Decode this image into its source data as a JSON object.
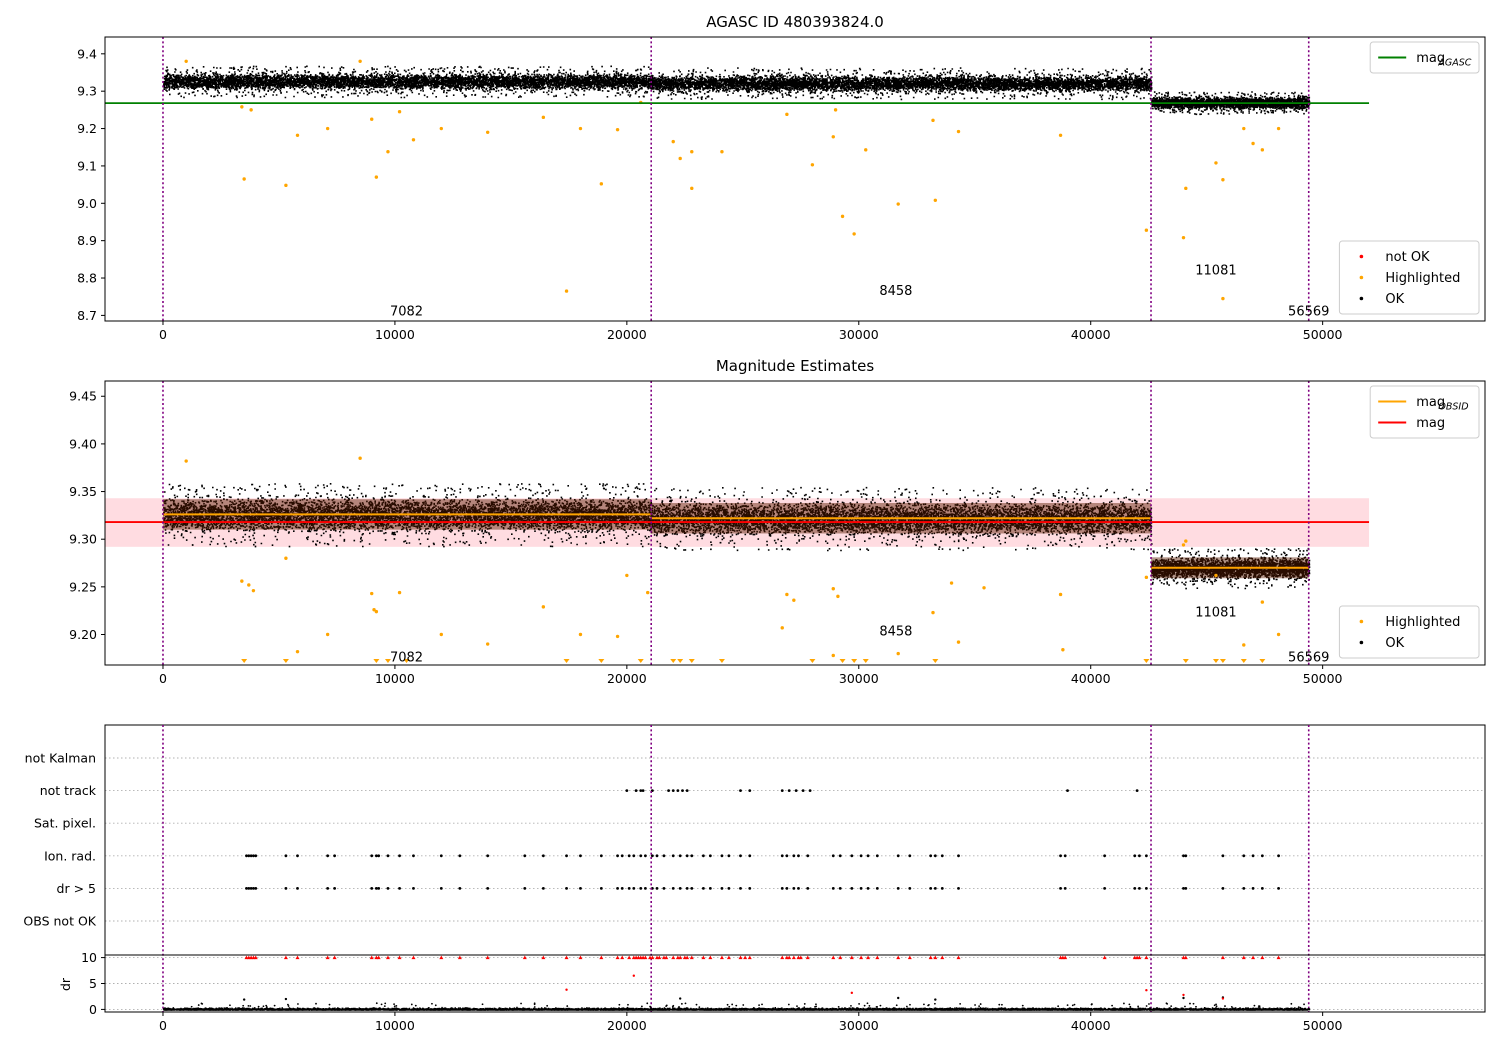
{
  "chart_data": [
    {
      "id": "top",
      "type": "scatter",
      "title": "AGASC ID 480393824.0",
      "xlim": [
        -2500,
        57000
      ],
      "ylim": [
        8.685,
        9.445
      ],
      "xticks": [
        0,
        10000,
        20000,
        30000,
        40000,
        50000
      ],
      "yticks": [
        8.7,
        8.8,
        8.9,
        9.0,
        9.1,
        9.2,
        9.3,
        9.4
      ],
      "ytick_format": 1,
      "legend_upper": {
        "position": "top-right",
        "entries": [
          {
            "label": "mag",
            "sub": "AGASC",
            "color": "#008000",
            "kind": "line"
          }
        ]
      },
      "legend_lower": {
        "position": "bottom-right",
        "entries": [
          {
            "label": "not OK",
            "color": "#ff0000",
            "kind": "dot"
          },
          {
            "label": "Highlighted",
            "color": "#ffa500",
            "kind": "dot"
          },
          {
            "label": "OK",
            "color": "#000000",
            "kind": "dot"
          }
        ]
      },
      "hlines": [
        {
          "y": 9.268,
          "x": [
            -2500,
            52000
          ],
          "color": "#008000"
        }
      ],
      "obsid_boundaries": [
        0,
        21050,
        42600,
        49400
      ],
      "obsid_labels": [
        {
          "text": "7082",
          "x": 10500,
          "y": 8.71
        },
        {
          "text": "8458",
          "x": 31600,
          "y": 8.765
        },
        {
          "text": "11081",
          "x": 45400,
          "y": 8.82
        },
        {
          "text": "56569",
          "x": 49400,
          "y": 8.71
        }
      ],
      "segments": [
        {
          "x": [
            0,
            21050
          ],
          "center": 9.327,
          "spread": 0.028,
          "lo": 9.28,
          "hi": 9.38,
          "n": 7000
        },
        {
          "x": [
            21050,
            42600
          ],
          "center": 9.322,
          "spread": 0.028,
          "lo": 9.28,
          "hi": 9.38,
          "n": 7000
        },
        {
          "x": [
            42600,
            49400
          ],
          "center": 9.27,
          "spread": 0.02,
          "lo": 9.24,
          "hi": 9.3,
          "n": 3000
        }
      ],
      "highlighted": [
        [
          3500,
          9.065
        ],
        [
          5300,
          9.048
        ],
        [
          5800,
          9.182
        ],
        [
          7100,
          9.2
        ],
        [
          9000,
          9.225
        ],
        [
          9200,
          9.07
        ],
        [
          9700,
          9.138
        ],
        [
          10200,
          9.245
        ],
        [
          10800,
          9.17
        ],
        [
          12000,
          9.2
        ],
        [
          14000,
          9.19
        ],
        [
          16400,
          9.23
        ],
        [
          17400,
          8.765
        ],
        [
          18000,
          9.2
        ],
        [
          18900,
          9.052
        ],
        [
          19600,
          9.197
        ],
        [
          20600,
          9.27
        ],
        [
          22000,
          9.165
        ],
        [
          22300,
          9.12
        ],
        [
          22800,
          9.04
        ],
        [
          22800,
          9.138
        ],
        [
          24100,
          9.138
        ],
        [
          26900,
          9.238
        ],
        [
          28000,
          9.103
        ],
        [
          28900,
          9.178
        ],
        [
          29300,
          8.965
        ],
        [
          29800,
          8.918
        ],
        [
          30300,
          9.143
        ],
        [
          31700,
          8.998
        ],
        [
          33300,
          9.008
        ],
        [
          33200,
          9.222
        ],
        [
          34300,
          9.192
        ],
        [
          38700,
          9.182
        ],
        [
          42400,
          8.928
        ],
        [
          44000,
          8.908
        ],
        [
          44100,
          9.04
        ],
        [
          45400,
          9.108
        ],
        [
          45700,
          9.063
        ],
        [
          45700,
          8.745
        ],
        [
          46600,
          9.2
        ],
        [
          47000,
          9.16
        ],
        [
          47400,
          9.143
        ],
        [
          48100,
          9.2
        ],
        [
          3400,
          9.258
        ],
        [
          3800,
          9.25
        ],
        [
          29000,
          9.25
        ],
        [
          1000,
          9.38
        ],
        [
          8500,
          9.38
        ]
      ],
      "seed": 11
    },
    {
      "id": "mid",
      "type": "scatter",
      "title": "Magnitude Estimates",
      "xlim": [
        -2500,
        57000
      ],
      "ylim": [
        9.168,
        9.466
      ],
      "xticks": [
        0,
        10000,
        20000,
        30000,
        40000,
        50000
      ],
      "yticks": [
        9.2,
        9.25,
        9.3,
        9.35,
        9.4,
        9.45
      ],
      "ytick_format": 2,
      "legend_upper": {
        "position": "top-right",
        "entries": [
          {
            "label": "mag",
            "sub": "OBSID",
            "color": "#ffa500",
            "kind": "line"
          },
          {
            "label": "mag",
            "sub": "",
            "color": "#ff0000",
            "kind": "line"
          }
        ]
      },
      "legend_lower": {
        "position": "bottom-right",
        "entries": [
          {
            "label": "Highlighted",
            "color": "#ffa500",
            "kind": "dot"
          },
          {
            "label": "OK",
            "color": "#000000",
            "kind": "dot"
          }
        ]
      },
      "band": {
        "y": [
          9.292,
          9.343
        ],
        "x": [
          -2500,
          52000
        ],
        "color": "#ffc0c8"
      },
      "hlines": [
        {
          "y": 9.318,
          "x": [
            -2500,
            52000
          ],
          "color": "#ff0000"
        }
      ],
      "obsid_means": [
        {
          "x": [
            0,
            21050
          ],
          "y": 9.326,
          "err": 0.016
        },
        {
          "x": [
            21050,
            42600
          ],
          "y": 9.322,
          "err": 0.016
        },
        {
          "x": [
            42600,
            49400
          ],
          "y": 9.27,
          "err": 0.011
        }
      ],
      "obsid_boundaries": [
        0,
        21050,
        42600,
        49400
      ],
      "obsid_labels": [
        {
          "text": "7082",
          "x": 10500,
          "y": 9.176
        },
        {
          "text": "8458",
          "x": 31600,
          "y": 9.203
        },
        {
          "text": "11081",
          "x": 45400,
          "y": 9.223
        },
        {
          "text": "56569",
          "x": 49400,
          "y": 9.176
        }
      ],
      "segments": [
        {
          "x": [
            0,
            21050
          ],
          "center": 9.326,
          "spread": 0.022,
          "lo": 9.275,
          "hi": 9.385,
          "n": 7000
        },
        {
          "x": [
            21050,
            42600
          ],
          "center": 9.322,
          "spread": 0.022,
          "lo": 9.275,
          "hi": 9.38,
          "n": 7000
        },
        {
          "x": [
            42600,
            49400
          ],
          "center": 9.27,
          "spread": 0.014,
          "lo": 9.235,
          "hi": 9.305,
          "n": 3000
        }
      ],
      "highlighted": [
        [
          3400,
          9.256
        ],
        [
          3700,
          9.252
        ],
        [
          3900,
          9.246
        ],
        [
          5300,
          9.28
        ],
        [
          5800,
          9.182
        ],
        [
          7100,
          9.2
        ],
        [
          9000,
          9.243
        ],
        [
          9100,
          9.226
        ],
        [
          9200,
          9.224
        ],
        [
          10200,
          9.244
        ],
        [
          12000,
          9.2
        ],
        [
          14000,
          9.19
        ],
        [
          16400,
          9.229
        ],
        [
          18000,
          9.2
        ],
        [
          19600,
          9.198
        ],
        [
          20000,
          9.262
        ],
        [
          20900,
          9.244
        ],
        [
          26700,
          9.207
        ],
        [
          26900,
          9.242
        ],
        [
          27200,
          9.236
        ],
        [
          28900,
          9.248
        ],
        [
          29100,
          9.24
        ],
        [
          28900,
          9.178
        ],
        [
          31700,
          9.18
        ],
        [
          33200,
          9.223
        ],
        [
          34300,
          9.192
        ],
        [
          34000,
          9.254
        ],
        [
          35400,
          9.249
        ],
        [
          38700,
          9.242
        ],
        [
          38800,
          9.184
        ],
        [
          42400,
          9.26
        ],
        [
          44000,
          9.294
        ],
        [
          44100,
          9.298
        ],
        [
          45400,
          9.262
        ],
        [
          46600,
          9.189
        ],
        [
          47400,
          9.234
        ],
        [
          48100,
          9.2
        ],
        [
          1000,
          9.382
        ],
        [
          8500,
          9.385
        ]
      ],
      "clipped_x": [
        3500,
        5300,
        9200,
        9700,
        10500,
        17400,
        18900,
        20600,
        22000,
        22300,
        22800,
        24100,
        28000,
        29300,
        29800,
        30300,
        33300,
        42400,
        44100,
        45400,
        45700,
        46600,
        47400
      ],
      "seed": 23
    },
    {
      "id": "flags",
      "type": "scatter",
      "title": "",
      "xlim": [
        -2500,
        57000
      ],
      "rows": [
        "not Kalman",
        "not track",
        "Sat. pixel.",
        "Ion. rad.",
        "dr > 5",
        "OBS not OK"
      ],
      "dr_ylim": [
        -0.5,
        10.5
      ],
      "dr_label": "dr",
      "dr_yticks": [
        0,
        5,
        10
      ],
      "xticks": [
        0,
        10000,
        20000,
        30000,
        40000,
        50000
      ],
      "obsid_boundaries": [
        0,
        21050,
        42600,
        49400
      ],
      "not_track_x": [
        20000,
        20400,
        20600,
        20700,
        21100,
        21800,
        22000,
        22200,
        22400,
        22600,
        24900,
        25300,
        26700,
        27000,
        27300,
        27600,
        27900,
        39000,
        42000
      ],
      "ion_rad_x": [
        3600,
        3700,
        3800,
        3900,
        4000,
        5300,
        5800,
        7100,
        7400,
        9000,
        9200,
        9300,
        9700,
        10200,
        10800,
        12000,
        12800,
        14000,
        15600,
        16400,
        17400,
        18000,
        18900,
        19600,
        19800,
        20100,
        20300,
        20600,
        20800,
        21100,
        21300,
        21600,
        22000,
        22300,
        22600,
        22800,
        23300,
        23600,
        24100,
        24400,
        24900,
        25300,
        26700,
        26900,
        27200,
        27400,
        27800,
        28900,
        29200,
        29700,
        30100,
        30400,
        30800,
        31700,
        32200,
        33100,
        33300,
        33600,
        34300,
        38700,
        38900,
        40600,
        41900,
        42100,
        42400,
        44000,
        44100,
        45700,
        46600,
        47000,
        47400,
        48100
      ],
      "dr_gt5_x": [
        3600,
        3700,
        3800,
        3900,
        4000,
        5300,
        5800,
        7100,
        7400,
        9000,
        9200,
        9300,
        9700,
        10200,
        10800,
        12000,
        12800,
        14000,
        15600,
        16400,
        17400,
        18000,
        18900,
        19600,
        19800,
        20100,
        20300,
        20600,
        20800,
        21100,
        21300,
        21600,
        22000,
        22300,
        22600,
        22800,
        23300,
        23600,
        24100,
        24400,
        24900,
        25300,
        26700,
        26900,
        27200,
        27400,
        27800,
        28900,
        29200,
        29700,
        30100,
        30400,
        30800,
        31700,
        32200,
        33100,
        33300,
        33600,
        34300,
        38700,
        38900,
        40600,
        41900,
        42100,
        42400,
        44000,
        44100,
        45700,
        46600,
        47000,
        47400,
        48100
      ],
      "dr_high_x": [
        3600,
        3700,
        3800,
        3900,
        4000,
        5300,
        5800,
        7100,
        7400,
        9000,
        9200,
        9300,
        9700,
        10200,
        10800,
        12000,
        12800,
        14000,
        15600,
        16400,
        17400,
        18000,
        18900,
        19600,
        19800,
        20100,
        20300,
        20400,
        20500,
        20600,
        20700,
        20800,
        21000,
        21100,
        21300,
        21400,
        21600,
        21700,
        22000,
        22200,
        22300,
        22500,
        22600,
        22800,
        23300,
        23600,
        24100,
        24400,
        24900,
        25100,
        25300,
        26700,
        26900,
        27000,
        27200,
        27400,
        27500,
        27800,
        28900,
        29200,
        29700,
        30100,
        30400,
        30800,
        31700,
        32200,
        33100,
        33300,
        33600,
        34300,
        38700,
        38800,
        38900,
        40600,
        41900,
        42000,
        42100,
        42400,
        44000,
        44100,
        45700,
        46600,
        47000,
        47400,
        48100
      ],
      "dr_red_mid": [
        [
          20300,
          6.5
        ],
        [
          17400,
          3.8
        ],
        [
          29700,
          3.2
        ],
        [
          42400,
          3.7
        ],
        [
          44000,
          2.8
        ],
        [
          45700,
          2.1
        ]
      ],
      "dr_black_mid": [
        [
          3500,
          1.9
        ],
        [
          5300,
          2.0
        ],
        [
          22300,
          2.1
        ],
        [
          31700,
          2.2
        ],
        [
          33300,
          1.9
        ],
        [
          44000,
          2.2
        ],
        [
          45700,
          2.3
        ]
      ],
      "seed": 37
    }
  ]
}
